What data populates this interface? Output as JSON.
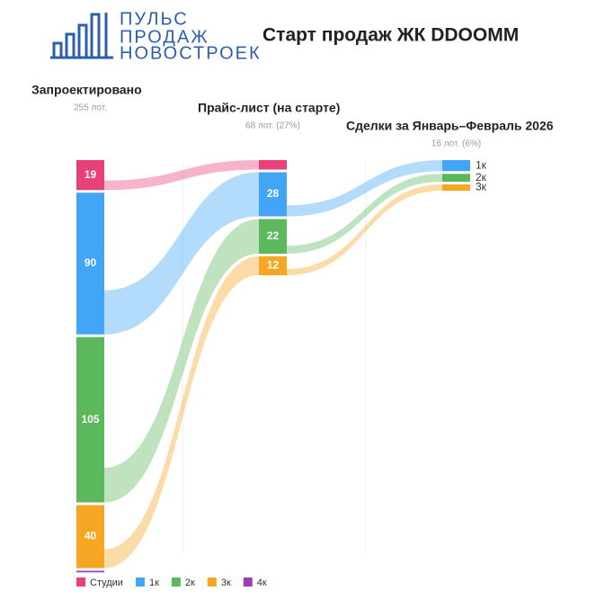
{
  "logo": {
    "lines": [
      "ПУЛЬС",
      "ПРОДАЖ",
      "НОВОСТРОЕК"
    ]
  },
  "chart_data": {
    "type": "sankey",
    "title": "Старт продаж ЖК DDOOMM",
    "categories": [
      "Студии",
      "1к",
      "2к",
      "3к",
      "4к"
    ],
    "colors": [
      "#e8417a",
      "#42a5f5",
      "#5cb85c",
      "#f5a623",
      "#9c3fb5"
    ],
    "stages": [
      {
        "name": "Запроектировано",
        "subtitle": "255 лот.",
        "values": [
          19,
          90,
          105,
          40,
          1
        ]
      },
      {
        "name": "Прайс-лист (на старте)",
        "subtitle": "68 лот. (27%)",
        "values": [
          6,
          28,
          22,
          12,
          null
        ]
      },
      {
        "name": "Сделки за Январь–Февраль 2026",
        "subtitle": "16 лот. (6%)",
        "values": [
          null,
          7,
          5,
          4,
          null
        ]
      }
    ]
  }
}
